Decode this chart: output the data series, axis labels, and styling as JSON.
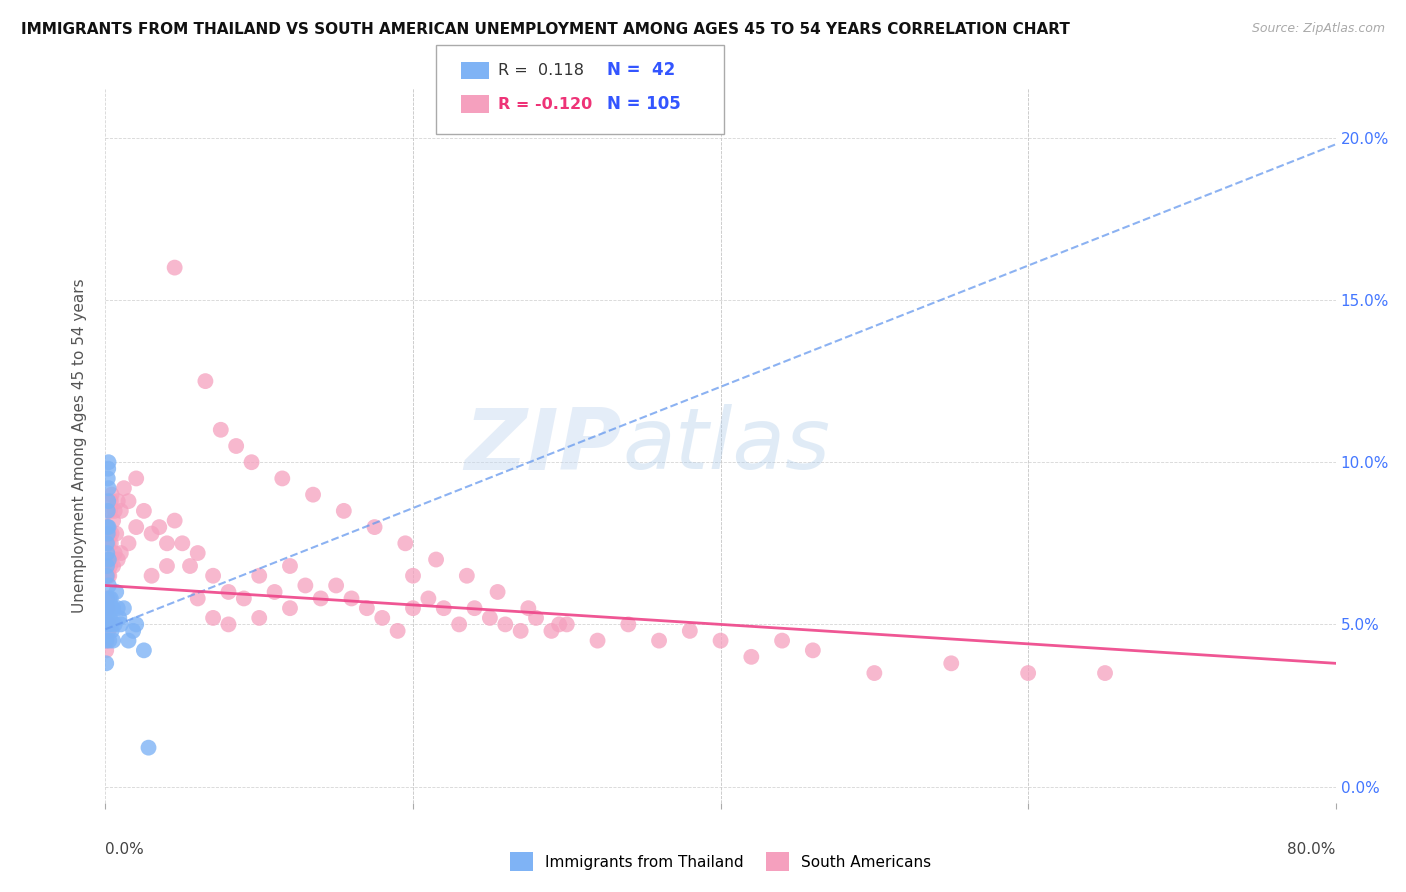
{
  "title": "IMMIGRANTS FROM THAILAND VS SOUTH AMERICAN UNEMPLOYMENT AMONG AGES 45 TO 54 YEARS CORRELATION CHART",
  "source": "Source: ZipAtlas.com",
  "ylabel": "Unemployment Among Ages 45 to 54 years",
  "xlim": [
    0.0,
    80.0
  ],
  "ylim": [
    -0.5,
    21.5
  ],
  "yticks": [
    0.0,
    5.0,
    10.0,
    15.0,
    20.0
  ],
  "xticks": [
    0.0,
    20.0,
    40.0,
    60.0,
    80.0
  ],
  "thailand_color": "#7fb3f5",
  "south_american_color": "#f5a0be",
  "trendline_thailand_color": "#6699ee",
  "trendline_sa_color": "#ee4488",
  "watermark_zip": "ZIP",
  "watermark_atlas": "atlas",
  "thailand_x": [
    0.05,
    0.05,
    0.05,
    0.08,
    0.08,
    0.1,
    0.1,
    0.1,
    0.12,
    0.12,
    0.15,
    0.15,
    0.15,
    0.18,
    0.18,
    0.2,
    0.2,
    0.2,
    0.22,
    0.22,
    0.25,
    0.25,
    0.25,
    0.3,
    0.3,
    0.35,
    0.35,
    0.4,
    0.4,
    0.5,
    0.5,
    0.6,
    0.7,
    0.8,
    0.9,
    1.0,
    1.2,
    1.5,
    1.8,
    2.0,
    2.5,
    2.8
  ],
  "thailand_y": [
    5.0,
    4.5,
    3.8,
    6.5,
    5.5,
    7.5,
    6.8,
    5.2,
    8.0,
    7.2,
    9.5,
    8.5,
    7.8,
    9.8,
    8.8,
    10.0,
    9.2,
    8.0,
    7.0,
    6.2,
    5.8,
    5.0,
    4.5,
    5.5,
    5.2,
    5.8,
    5.0,
    5.5,
    4.8,
    5.5,
    4.5,
    5.0,
    6.0,
    5.5,
    5.2,
    5.0,
    5.5,
    4.5,
    4.8,
    5.0,
    4.2,
    1.2
  ],
  "sa_x": [
    0.05,
    0.05,
    0.08,
    0.08,
    0.1,
    0.1,
    0.12,
    0.12,
    0.15,
    0.15,
    0.18,
    0.18,
    0.2,
    0.2,
    0.22,
    0.25,
    0.25,
    0.3,
    0.3,
    0.35,
    0.35,
    0.4,
    0.4,
    0.5,
    0.5,
    0.6,
    0.6,
    0.7,
    0.8,
    0.8,
    1.0,
    1.0,
    1.2,
    1.5,
    1.5,
    2.0,
    2.0,
    2.5,
    3.0,
    3.0,
    3.5,
    4.0,
    4.0,
    4.5,
    5.0,
    5.5,
    6.0,
    6.0,
    7.0,
    7.0,
    8.0,
    8.0,
    9.0,
    10.0,
    10.0,
    11.0,
    12.0,
    12.0,
    13.0,
    14.0,
    15.0,
    16.0,
    17.0,
    18.0,
    19.0,
    20.0,
    20.0,
    21.0,
    22.0,
    23.0,
    24.0,
    25.0,
    26.0,
    27.0,
    28.0,
    29.0,
    30.0,
    32.0,
    34.0,
    36.0,
    38.0,
    40.0,
    42.0,
    44.0,
    46.0,
    50.0,
    55.0,
    60.0,
    65.0,
    4.5,
    6.5,
    7.5,
    8.5,
    9.5,
    11.5,
    13.5,
    15.5,
    17.5,
    19.5,
    21.5,
    23.5,
    25.5,
    27.5,
    29.5
  ],
  "sa_y": [
    5.0,
    4.2,
    5.8,
    4.5,
    6.5,
    5.5,
    7.0,
    5.8,
    8.0,
    6.5,
    5.5,
    4.8,
    7.5,
    5.0,
    5.2,
    7.8,
    6.5,
    8.5,
    6.8,
    8.8,
    7.5,
    9.0,
    7.8,
    8.2,
    6.8,
    8.5,
    7.2,
    7.8,
    8.8,
    7.0,
    8.5,
    7.2,
    9.2,
    8.8,
    7.5,
    9.5,
    8.0,
    8.5,
    7.8,
    6.5,
    8.0,
    7.5,
    6.8,
    8.2,
    7.5,
    6.8,
    7.2,
    5.8,
    6.5,
    5.2,
    6.0,
    5.0,
    5.8,
    6.5,
    5.2,
    6.0,
    6.8,
    5.5,
    6.2,
    5.8,
    6.2,
    5.8,
    5.5,
    5.2,
    4.8,
    6.5,
    5.5,
    5.8,
    5.5,
    5.0,
    5.5,
    5.2,
    5.0,
    4.8,
    5.2,
    4.8,
    5.0,
    4.5,
    5.0,
    4.5,
    4.8,
    4.5,
    4.0,
    4.5,
    4.2,
    3.5,
    3.8,
    3.5,
    3.5,
    16.0,
    12.5,
    11.0,
    10.5,
    10.0,
    9.5,
    9.0,
    8.5,
    8.0,
    7.5,
    7.0,
    6.5,
    6.0,
    5.5,
    5.0
  ],
  "trendline_t_x0": 0.0,
  "trendline_t_y0": 4.85,
  "trendline_t_x1": 80.0,
  "trendline_t_y1": 19.8,
  "trendline_sa_x0": 0.0,
  "trendline_sa_y0": 6.2,
  "trendline_sa_x1": 80.0,
  "trendline_sa_y1": 3.8
}
